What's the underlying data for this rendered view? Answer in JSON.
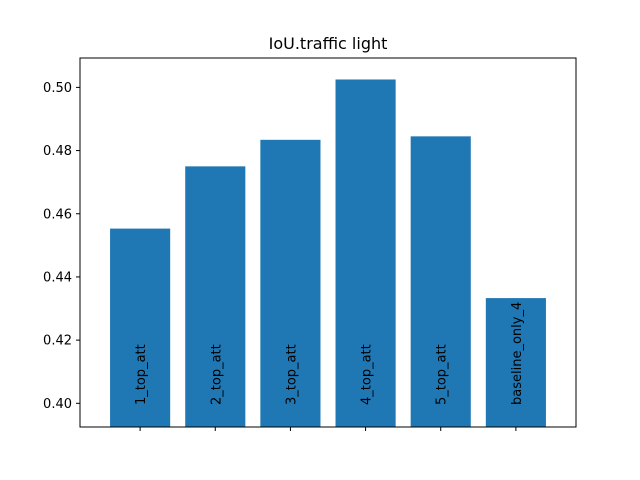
{
  "chart_data": {
    "type": "bar",
    "title": "IoU.traffic light",
    "xlabel": "",
    "ylabel": "",
    "categories": [
      "1_top_att",
      "2_top_att",
      "3_top_att",
      "4_top_att",
      "5_top_att",
      "baseline_only_4"
    ],
    "values": [
      0.4553,
      0.475,
      0.4834,
      0.5025,
      0.4845,
      0.4333
    ],
    "ylim": [
      0.3925,
      0.5093
    ],
    "yticks": [
      0.4,
      0.42,
      0.44,
      0.46,
      0.48,
      0.5
    ],
    "ytick_labels": [
      "0.40",
      "0.42",
      "0.44",
      "0.46",
      "0.48",
      "0.50"
    ],
    "bar_color": "#1f77b4",
    "grid": false,
    "legend": "none",
    "category_labels_inside_bars": true
  }
}
